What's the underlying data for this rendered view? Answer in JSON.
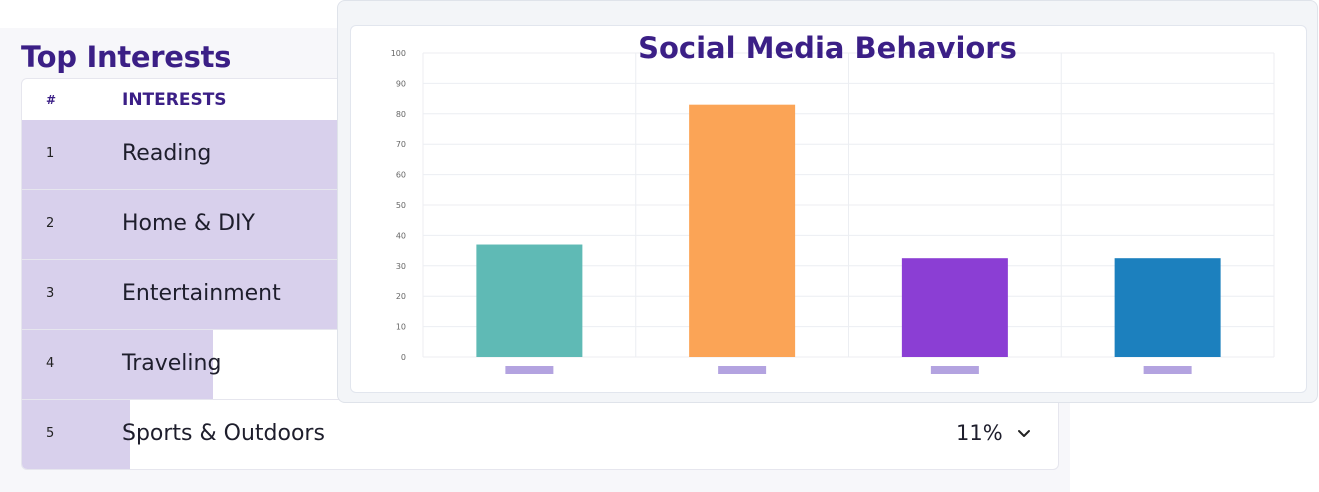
{
  "interests": {
    "title": "Top Interests",
    "header": {
      "num": "#",
      "label": "INTERESTS"
    },
    "rows": [
      {
        "num": "1",
        "label": "Reading"
      },
      {
        "num": "2",
        "label": "Home & DIY"
      },
      {
        "num": "3",
        "label": "Entertainment"
      },
      {
        "num": "4",
        "label": "Traveling"
      },
      {
        "num": "5",
        "label": "Sports & Outdoors",
        "percent": "11%"
      }
    ],
    "bar_color": "#d8d0ec"
  },
  "chart_data": {
    "type": "bar",
    "title": "Social Media Behaviors",
    "categories": [
      "",
      "",
      "",
      ""
    ],
    "values": [
      37,
      83,
      32.5,
      32.5
    ],
    "colors": [
      "#5fbab5",
      "#fba456",
      "#8b3ed4",
      "#1c80be"
    ],
    "legend_color": "#b3a3e0",
    "ylim": [
      0,
      100
    ],
    "yticks": [
      0,
      10,
      20,
      30,
      40,
      50,
      60,
      70,
      80,
      90,
      100
    ],
    "grid": true
  }
}
